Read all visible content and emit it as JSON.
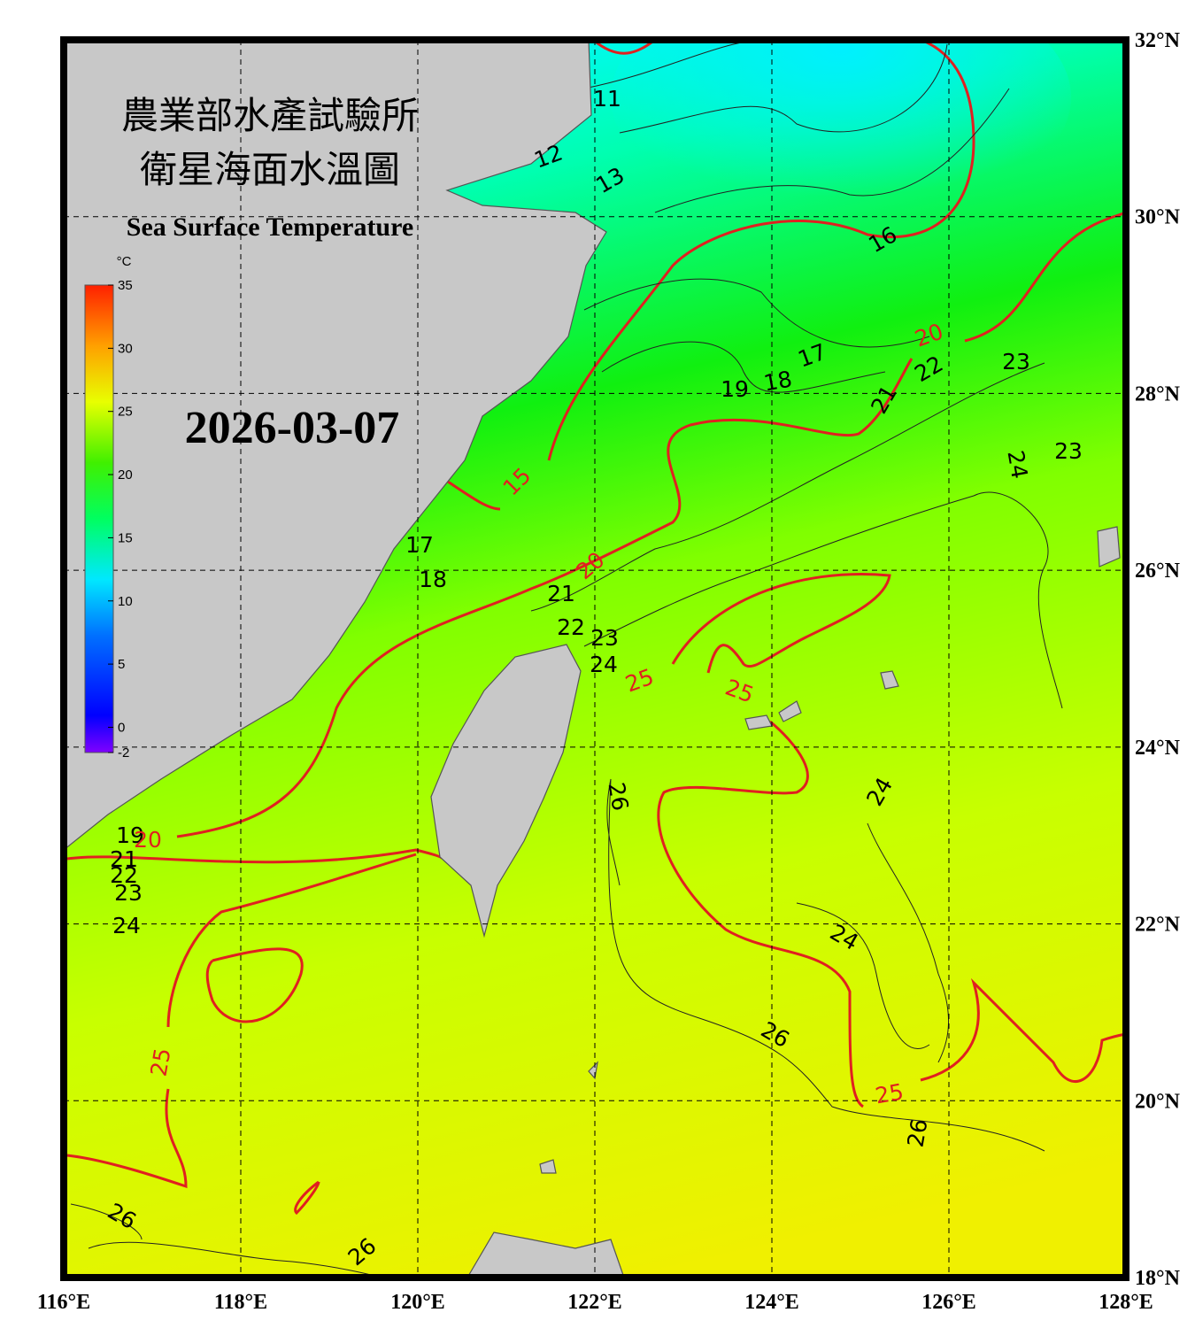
{
  "map": {
    "title_zh": "農業部水產試驗所",
    "subtitle_zh": "衛星海面水溫圖",
    "title_en": "Sea Surface Temperature",
    "date": "2026-03-07",
    "lonlim": [
      116,
      128
    ],
    "latlim": [
      18,
      32
    ],
    "lon_ticks": [
      {
        "value": 116,
        "label": "116°E"
      },
      {
        "value": 118,
        "label": "118°E"
      },
      {
        "value": 120,
        "label": "120°E"
      },
      {
        "value": 122,
        "label": "122°E"
      },
      {
        "value": 124,
        "label": "124°E"
      },
      {
        "value": 126,
        "label": "126°E"
      },
      {
        "value": 128,
        "label": "128°E"
      }
    ],
    "lat_ticks": [
      {
        "value": 18,
        "label": "18°N"
      },
      {
        "value": 20,
        "label": "20°N"
      },
      {
        "value": 22,
        "label": "22°N"
      },
      {
        "value": 24,
        "label": "24°N"
      },
      {
        "value": 26,
        "label": "26°N"
      },
      {
        "value": 28,
        "label": "28°N"
      },
      {
        "value": 30,
        "label": "30°N"
      },
      {
        "value": 32,
        "label": "32°N"
      }
    ],
    "colorbar": {
      "unit": "°C",
      "range": [
        -2,
        35
      ],
      "ticks": [
        -2,
        0,
        5,
        10,
        15,
        20,
        25,
        30,
        35
      ]
    },
    "contour_labels": [
      11,
      12,
      13,
      15,
      16,
      17,
      18,
      19,
      20,
      21,
      22,
      23,
      24,
      23,
      17,
      18,
      20,
      21,
      22,
      23,
      24,
      25,
      25,
      26,
      24,
      24,
      26,
      25,
      26,
      19,
      20,
      21,
      22,
      23,
      24,
      25,
      26,
      26
    ]
  }
}
